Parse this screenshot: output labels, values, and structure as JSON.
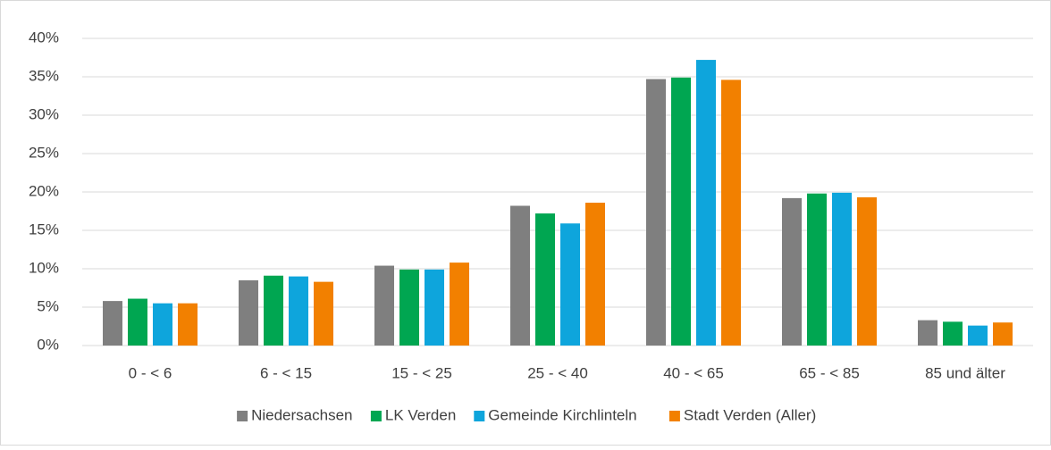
{
  "chart_data": {
    "type": "bar",
    "categories": [
      "0 - < 6",
      "6 - < 15",
      "15 - < 25",
      "25 - < 40",
      "40 - < 65",
      "65 - < 85",
      "85 und älter"
    ],
    "series": [
      {
        "name": "Niedersachsen",
        "color": "#7f7f7f",
        "values": [
          5.8,
          8.5,
          10.4,
          18.2,
          34.7,
          19.2,
          3.3
        ]
      },
      {
        "name": "LK Verden",
        "color": "#00a651",
        "values": [
          6.1,
          9.1,
          9.9,
          17.2,
          34.9,
          19.8,
          3.1
        ]
      },
      {
        "name": "Gemeinde Kirchlinteln",
        "color": "#0ea5dc",
        "values": [
          5.5,
          9.0,
          9.9,
          15.9,
          37.2,
          19.9,
          2.6
        ]
      },
      {
        "name": "Stadt Verden (Aller)",
        "color": "#f28000",
        "values": [
          5.5,
          8.3,
          10.8,
          18.6,
          34.6,
          19.3,
          3.0
        ]
      }
    ],
    "ylim": [
      0,
      40
    ],
    "yticks": [
      {
        "value": 0,
        "label": "0%"
      },
      {
        "value": 5,
        "label": "5%"
      },
      {
        "value": 10,
        "label": "10%"
      },
      {
        "value": 15,
        "label": "15%"
      },
      {
        "value": 20,
        "label": "20%"
      },
      {
        "value": 25,
        "label": "25%"
      },
      {
        "value": 30,
        "label": "30%"
      },
      {
        "value": 35,
        "label": "35%"
      },
      {
        "value": 40,
        "label": "40%"
      }
    ],
    "grid": true,
    "legend": "bottom"
  }
}
